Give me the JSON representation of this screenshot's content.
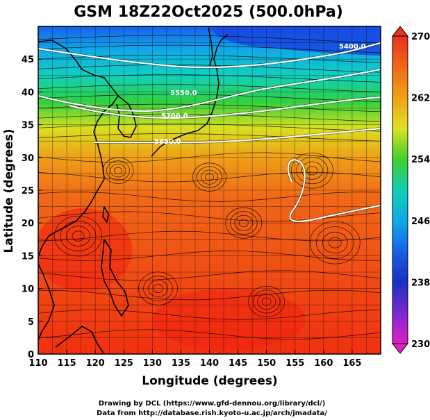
{
  "chart_data": {
    "type": "heatmap",
    "title": "GSM 18Z22Oct2025 (500.0hPa)",
    "xlabel": "Longitude (degrees)",
    "ylabel": "Latitude  (degrees)",
    "xlim": [
      110,
      170
    ],
    "ylim": [
      0,
      50
    ],
    "x_ticks": [
      "110",
      "115",
      "120",
      "125",
      "130",
      "135",
      "140",
      "145",
      "150",
      "155",
      "160",
      "165"
    ],
    "y_ticks": [
      "0",
      "5",
      "10",
      "15",
      "20",
      "25",
      "30",
      "35",
      "40",
      "45"
    ],
    "colorbar": {
      "min": 230,
      "max": 270,
      "ticks": [
        "270",
        "262",
        "254",
        "246",
        "238",
        "230"
      ]
    },
    "field": "temperature (K) shaded, geopotential height contours, wind streamlines",
    "contours": [
      {
        "label": "5400",
        "text": "5400.0"
      },
      {
        "label": "5550",
        "text": "5550.0"
      },
      {
        "label": "5700",
        "text": "5700.0"
      },
      {
        "label": "5850",
        "text": "5850.0"
      }
    ],
    "colors": {
      "magenta": "#e020c0",
      "purple": "#7a2ad0",
      "blue": "#1840e0",
      "cyan": "#10b0e8",
      "teal": "#10d0b0",
      "green": "#30d030",
      "yellow": "#e8e018",
      "orange": "#f08a18",
      "red": "#f02810"
    }
  },
  "credits": {
    "line1": "Drawing by DCL (https://www.gfd-dennou.org/library/dcl/)",
    "line2": "Data from http://database.rish.kyoto-u.ac.jp/arch/jmadata/"
  }
}
